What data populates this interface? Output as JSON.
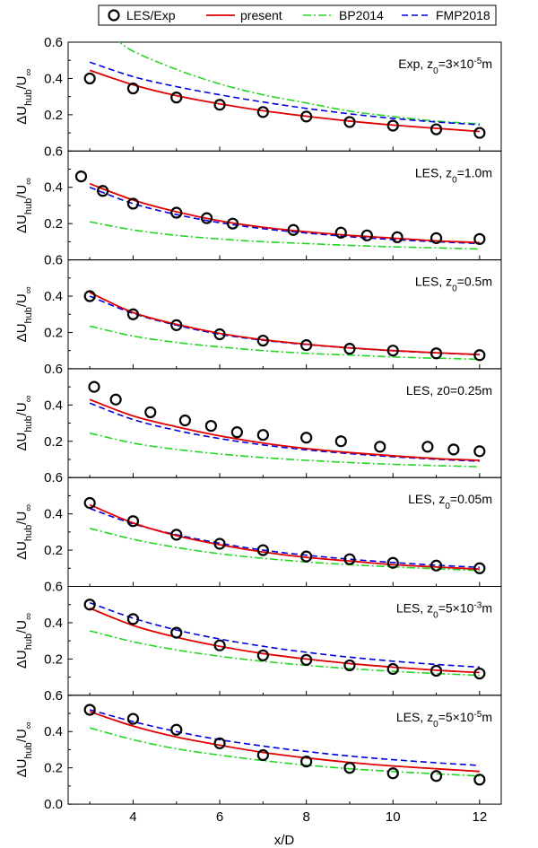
{
  "chart_data": {
    "type": "line",
    "xlabel": "x/D",
    "ylabel": "ΔU_hub/U_∞",
    "ylabel_parts": {
      "base": "ΔU",
      "sub1": "hub",
      "mid": "/U",
      "sub2": "∞"
    },
    "xlim": [
      2.5,
      12.5
    ],
    "ylim": [
      0.0,
      0.6
    ],
    "x_ticks": [
      "4",
      "6",
      "8",
      "10",
      "12"
    ],
    "y_ticks": [
      "0.2",
      "0.4",
      "0.6"
    ],
    "y_ticks_bottom": [
      "0.0",
      "0.2",
      "0.4",
      "0.6"
    ],
    "legend": [
      {
        "name": "LES/Exp",
        "style": "marker",
        "color": "#000000"
      },
      {
        "name": "present",
        "style": "solid",
        "color": "#e00000"
      },
      {
        "name": "BP2014",
        "style": "dashdot",
        "color": "#22d622"
      },
      {
        "name": "FMP2018",
        "style": "dashed",
        "color": "#0000e0"
      }
    ],
    "panels": [
      {
        "label_prefix": "Exp, z",
        "label_sub": "0",
        "label_suffix": "=3×10",
        "label_sup": "-5",
        "label_unit": "m",
        "les": [
          [
            3,
            0.4
          ],
          [
            4,
            0.345
          ],
          [
            5,
            0.295
          ],
          [
            6,
            0.255
          ],
          [
            7,
            0.215
          ],
          [
            8,
            0.19
          ],
          [
            9,
            0.16
          ],
          [
            10,
            0.14
          ],
          [
            11,
            0.12
          ],
          [
            12,
            0.1
          ]
        ],
        "present": [
          [
            3,
            0.445
          ],
          [
            4,
            0.365
          ],
          [
            5,
            0.305
          ],
          [
            6,
            0.26
          ],
          [
            7,
            0.222
          ],
          [
            8,
            0.192
          ],
          [
            9,
            0.165
          ],
          [
            10,
            0.143
          ],
          [
            11,
            0.125
          ],
          [
            12,
            0.108
          ]
        ],
        "bp2014": [
          [
            3.6,
            0.62
          ],
          [
            4,
            0.55
          ],
          [
            5,
            0.45
          ],
          [
            6,
            0.37
          ],
          [
            7,
            0.31
          ],
          [
            8,
            0.265
          ],
          [
            9,
            0.22
          ],
          [
            10,
            0.19
          ],
          [
            11,
            0.165
          ],
          [
            12,
            0.15
          ]
        ],
        "fmp2018": [
          [
            3,
            0.49
          ],
          [
            4,
            0.41
          ],
          [
            5,
            0.355
          ],
          [
            6,
            0.31
          ],
          [
            7,
            0.27
          ],
          [
            8,
            0.235
          ],
          [
            9,
            0.205
          ],
          [
            10,
            0.18
          ],
          [
            11,
            0.16
          ],
          [
            12,
            0.145
          ]
        ]
      },
      {
        "label_prefix": "LES, z",
        "label_sub": "0",
        "label_suffix": "=1.0m",
        "label_sup": "",
        "label_unit": "",
        "les": [
          [
            2.8,
            0.46
          ],
          [
            3.3,
            0.38
          ],
          [
            4,
            0.31
          ],
          [
            5,
            0.26
          ],
          [
            5.7,
            0.23
          ],
          [
            6.3,
            0.2
          ],
          [
            7.7,
            0.165
          ],
          [
            8.8,
            0.15
          ],
          [
            9.4,
            0.135
          ],
          [
            10.1,
            0.125
          ],
          [
            11,
            0.12
          ],
          [
            12,
            0.115
          ]
        ],
        "present": [
          [
            3,
            0.42
          ],
          [
            4,
            0.33
          ],
          [
            5,
            0.265
          ],
          [
            6,
            0.215
          ],
          [
            7,
            0.18
          ],
          [
            8,
            0.155
          ],
          [
            9,
            0.135
          ],
          [
            10,
            0.12
          ],
          [
            11,
            0.105
          ],
          [
            12,
            0.095
          ]
        ],
        "bp2014": [
          [
            3,
            0.21
          ],
          [
            4,
            0.165
          ],
          [
            5,
            0.135
          ],
          [
            6,
            0.115
          ],
          [
            7,
            0.1
          ],
          [
            8,
            0.09
          ],
          [
            9,
            0.08
          ],
          [
            10,
            0.072
          ],
          [
            11,
            0.066
          ],
          [
            12,
            0.06
          ]
        ],
        "fmp2018": [
          [
            3,
            0.4
          ],
          [
            4,
            0.31
          ],
          [
            5,
            0.25
          ],
          [
            6,
            0.205
          ],
          [
            7,
            0.172
          ],
          [
            8,
            0.148
          ],
          [
            9,
            0.128
          ],
          [
            10,
            0.112
          ],
          [
            11,
            0.1
          ],
          [
            12,
            0.09
          ]
        ]
      },
      {
        "label_prefix": "LES, z",
        "label_sub": "0",
        "label_suffix": "=0.5m",
        "label_sup": "",
        "label_unit": "",
        "les": [
          [
            3,
            0.4
          ],
          [
            4,
            0.3
          ],
          [
            5,
            0.24
          ],
          [
            6,
            0.19
          ],
          [
            7,
            0.155
          ],
          [
            8,
            0.13
          ],
          [
            9,
            0.11
          ],
          [
            10,
            0.1
          ],
          [
            11,
            0.085
          ],
          [
            12,
            0.075
          ]
        ],
        "present": [
          [
            3,
            0.42
          ],
          [
            4,
            0.31
          ],
          [
            5,
            0.245
          ],
          [
            6,
            0.195
          ],
          [
            7,
            0.16
          ],
          [
            8,
            0.135
          ],
          [
            9,
            0.115
          ],
          [
            10,
            0.1
          ],
          [
            11,
            0.088
          ],
          [
            12,
            0.078
          ]
        ],
        "bp2014": [
          [
            3,
            0.235
          ],
          [
            4,
            0.18
          ],
          [
            5,
            0.145
          ],
          [
            6,
            0.12
          ],
          [
            7,
            0.1
          ],
          [
            8,
            0.085
          ],
          [
            9,
            0.075
          ],
          [
            10,
            0.065
          ],
          [
            11,
            0.058
          ],
          [
            12,
            0.052
          ]
        ],
        "fmp2018": [
          [
            3,
            0.4
          ],
          [
            4,
            0.305
          ],
          [
            5,
            0.24
          ],
          [
            6,
            0.19
          ],
          [
            7,
            0.157
          ],
          [
            8,
            0.133
          ],
          [
            9,
            0.114
          ],
          [
            10,
            0.099
          ],
          [
            11,
            0.087
          ],
          [
            12,
            0.077
          ]
        ]
      },
      {
        "label_prefix": "LES, z0=0.25m",
        "label_sub": "",
        "label_suffix": "",
        "label_sup": "",
        "label_unit": "",
        "les": [
          [
            3.1,
            0.5
          ],
          [
            3.6,
            0.43
          ],
          [
            4.4,
            0.36
          ],
          [
            5.2,
            0.315
          ],
          [
            5.8,
            0.285
          ],
          [
            6.4,
            0.25
          ],
          [
            7,
            0.235
          ],
          [
            8,
            0.22
          ],
          [
            8.8,
            0.2
          ],
          [
            9.7,
            0.17
          ],
          [
            10.8,
            0.17
          ],
          [
            11.4,
            0.155
          ],
          [
            12,
            0.145
          ]
        ],
        "present": [
          [
            3,
            0.43
          ],
          [
            4,
            0.34
          ],
          [
            5,
            0.28
          ],
          [
            6,
            0.23
          ],
          [
            7,
            0.19
          ],
          [
            8,
            0.16
          ],
          [
            9,
            0.138
          ],
          [
            10,
            0.12
          ],
          [
            11,
            0.105
          ],
          [
            12,
            0.095
          ]
        ],
        "bp2014": [
          [
            3,
            0.245
          ],
          [
            4,
            0.19
          ],
          [
            5,
            0.155
          ],
          [
            6,
            0.13
          ],
          [
            7,
            0.11
          ],
          [
            8,
            0.095
          ],
          [
            9,
            0.083
          ],
          [
            10,
            0.073
          ],
          [
            11,
            0.066
          ],
          [
            12,
            0.06
          ]
        ],
        "fmp2018": [
          [
            3,
            0.41
          ],
          [
            4,
            0.32
          ],
          [
            5,
            0.26
          ],
          [
            6,
            0.215
          ],
          [
            7,
            0.18
          ],
          [
            8,
            0.153
          ],
          [
            9,
            0.132
          ],
          [
            10,
            0.115
          ],
          [
            11,
            0.101
          ],
          [
            12,
            0.09
          ]
        ]
      },
      {
        "label_prefix": "LES, z",
        "label_sub": "0",
        "label_suffix": "=0.05m",
        "label_sup": "",
        "label_unit": "",
        "les": [
          [
            3,
            0.46
          ],
          [
            4,
            0.36
          ],
          [
            5,
            0.285
          ],
          [
            6,
            0.235
          ],
          [
            7,
            0.2
          ],
          [
            8,
            0.165
          ],
          [
            9,
            0.15
          ],
          [
            10,
            0.13
          ],
          [
            11,
            0.115
          ],
          [
            12,
            0.1
          ]
        ],
        "present": [
          [
            3,
            0.45
          ],
          [
            4,
            0.35
          ],
          [
            5,
            0.28
          ],
          [
            6,
            0.23
          ],
          [
            7,
            0.19
          ],
          [
            8,
            0.16
          ],
          [
            9,
            0.14
          ],
          [
            10,
            0.12
          ],
          [
            11,
            0.107
          ],
          [
            12,
            0.095
          ]
        ],
        "bp2014": [
          [
            3,
            0.32
          ],
          [
            4,
            0.26
          ],
          [
            5,
            0.215
          ],
          [
            6,
            0.18
          ],
          [
            7,
            0.155
          ],
          [
            8,
            0.135
          ],
          [
            9,
            0.12
          ],
          [
            10,
            0.108
          ],
          [
            11,
            0.097
          ],
          [
            12,
            0.088
          ]
        ],
        "fmp2018": [
          [
            3,
            0.43
          ],
          [
            4,
            0.345
          ],
          [
            5,
            0.285
          ],
          [
            6,
            0.238
          ],
          [
            7,
            0.2
          ],
          [
            8,
            0.172
          ],
          [
            9,
            0.15
          ],
          [
            10,
            0.132
          ],
          [
            11,
            0.117
          ],
          [
            12,
            0.105
          ]
        ]
      },
      {
        "label_prefix": "LES, z",
        "label_sub": "0",
        "label_suffix": "=5×10",
        "label_sup": "-3",
        "label_unit": "m",
        "les": [
          [
            3,
            0.5
          ],
          [
            4,
            0.42
          ],
          [
            5,
            0.345
          ],
          [
            6,
            0.275
          ],
          [
            7,
            0.22
          ],
          [
            8,
            0.195
          ],
          [
            9,
            0.165
          ],
          [
            10,
            0.145
          ],
          [
            11,
            0.135
          ],
          [
            12,
            0.12
          ]
        ],
        "present": [
          [
            3,
            0.48
          ],
          [
            4,
            0.385
          ],
          [
            5,
            0.32
          ],
          [
            6,
            0.27
          ],
          [
            7,
            0.23
          ],
          [
            8,
            0.2
          ],
          [
            9,
            0.175
          ],
          [
            10,
            0.155
          ],
          [
            11,
            0.138
          ],
          [
            12,
            0.125
          ]
        ],
        "bp2014": [
          [
            3,
            0.355
          ],
          [
            4,
            0.295
          ],
          [
            5,
            0.25
          ],
          [
            6,
            0.215
          ],
          [
            7,
            0.187
          ],
          [
            8,
            0.165
          ],
          [
            9,
            0.147
          ],
          [
            10,
            0.132
          ],
          [
            11,
            0.12
          ],
          [
            12,
            0.11
          ]
        ],
        "fmp2018": [
          [
            3,
            0.51
          ],
          [
            4,
            0.425
          ],
          [
            5,
            0.36
          ],
          [
            6,
            0.31
          ],
          [
            7,
            0.27
          ],
          [
            8,
            0.237
          ],
          [
            9,
            0.21
          ],
          [
            10,
            0.188
          ],
          [
            11,
            0.17
          ],
          [
            12,
            0.155
          ]
        ]
      },
      {
        "label_prefix": "LES, z",
        "label_sub": "0",
        "label_suffix": "=5×10",
        "label_sup": "-5",
        "label_unit": "m",
        "les": [
          [
            3,
            0.52
          ],
          [
            4,
            0.47
          ],
          [
            5,
            0.41
          ],
          [
            6,
            0.335
          ],
          [
            7,
            0.27
          ],
          [
            8,
            0.235
          ],
          [
            9,
            0.2
          ],
          [
            10,
            0.17
          ],
          [
            11,
            0.155
          ],
          [
            12,
            0.135
          ]
        ],
        "present": [
          [
            3,
            0.51
          ],
          [
            4,
            0.43
          ],
          [
            5,
            0.37
          ],
          [
            6,
            0.325
          ],
          [
            7,
            0.285
          ],
          [
            8,
            0.255
          ],
          [
            9,
            0.23
          ],
          [
            10,
            0.21
          ],
          [
            11,
            0.195
          ],
          [
            12,
            0.18
          ]
        ],
        "bp2014": [
          [
            3,
            0.42
          ],
          [
            4,
            0.355
          ],
          [
            5,
            0.305
          ],
          [
            6,
            0.27
          ],
          [
            7,
            0.24
          ],
          [
            8,
            0.215
          ],
          [
            9,
            0.195
          ],
          [
            10,
            0.18
          ],
          [
            11,
            0.167
          ],
          [
            12,
            0.155
          ]
        ],
        "fmp2018": [
          [
            3,
            0.52
          ],
          [
            4,
            0.455
          ],
          [
            5,
            0.4
          ],
          [
            6,
            0.355
          ],
          [
            7,
            0.32
          ],
          [
            8,
            0.29
          ],
          [
            9,
            0.265
          ],
          [
            10,
            0.245
          ],
          [
            11,
            0.228
          ],
          [
            12,
            0.213
          ]
        ]
      }
    ]
  }
}
